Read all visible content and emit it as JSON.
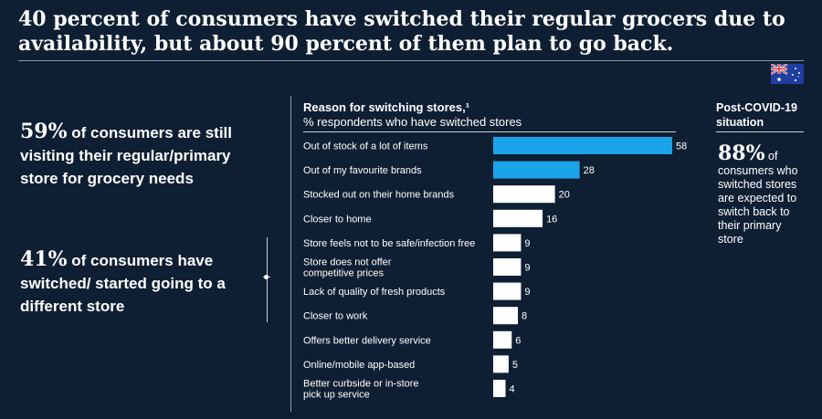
{
  "headline": "40 percent of consumers have switched their regular grocers due to availability, but about 90 percent of them plan to go back.",
  "flag_icon": "australia-flag-icon",
  "left_stats": [
    {
      "pct": "59%",
      "text": " of consumers are still visiting their regular/primary store for grocery needs"
    },
    {
      "pct": "41%",
      "text": " of consumers have switched/ started going to a different store"
    }
  ],
  "post": {
    "title": "Post-COVID-19 situation",
    "pct": "88%",
    "text": " of consumers who switched stores are expected to switch back to their primary store"
  },
  "colors": {
    "background": "#0f1f33",
    "highlight": "#1aa3e8",
    "bar": "#ffffff"
  },
  "chart_data": {
    "type": "bar",
    "orientation": "horizontal",
    "title": "Reason for switching stores,¹",
    "subtitle": "% respondents who have switched stores",
    "categories": [
      "Out of stock of a lot of items",
      "Out of my favourite brands",
      "Stocked out on their home brands",
      "Closer to home",
      "Store feels not to be safe/infection free",
      "Store does not offer competitive prices",
      "Lack of quality of fresh products",
      "Closer to work",
      "Offers better delivery service",
      "Online/mobile app-based",
      "Better curbside or in-store pick up service"
    ],
    "category_lines": [
      [
        "Out of stock of a lot of items"
      ],
      [
        "Out of my favourite brands"
      ],
      [
        "Stocked out on their home brands"
      ],
      [
        "Closer to home"
      ],
      [
        "Store feels not to be safe/infection free"
      ],
      [
        "Store does not offer",
        "competitive prices"
      ],
      [
        "Lack of quality of fresh products"
      ],
      [
        "Closer to work"
      ],
      [
        "Offers better delivery service"
      ],
      [
        "Online/mobile app-based"
      ],
      [
        "Better curbside or in-store",
        "pick up service"
      ]
    ],
    "values": [
      58,
      28,
      20,
      16,
      9,
      9,
      9,
      8,
      6,
      5,
      4
    ],
    "highlighted": [
      true,
      true,
      false,
      false,
      false,
      false,
      false,
      false,
      false,
      false,
      false
    ],
    "xlim": [
      0,
      58
    ],
    "grid": false,
    "legend": "none"
  }
}
